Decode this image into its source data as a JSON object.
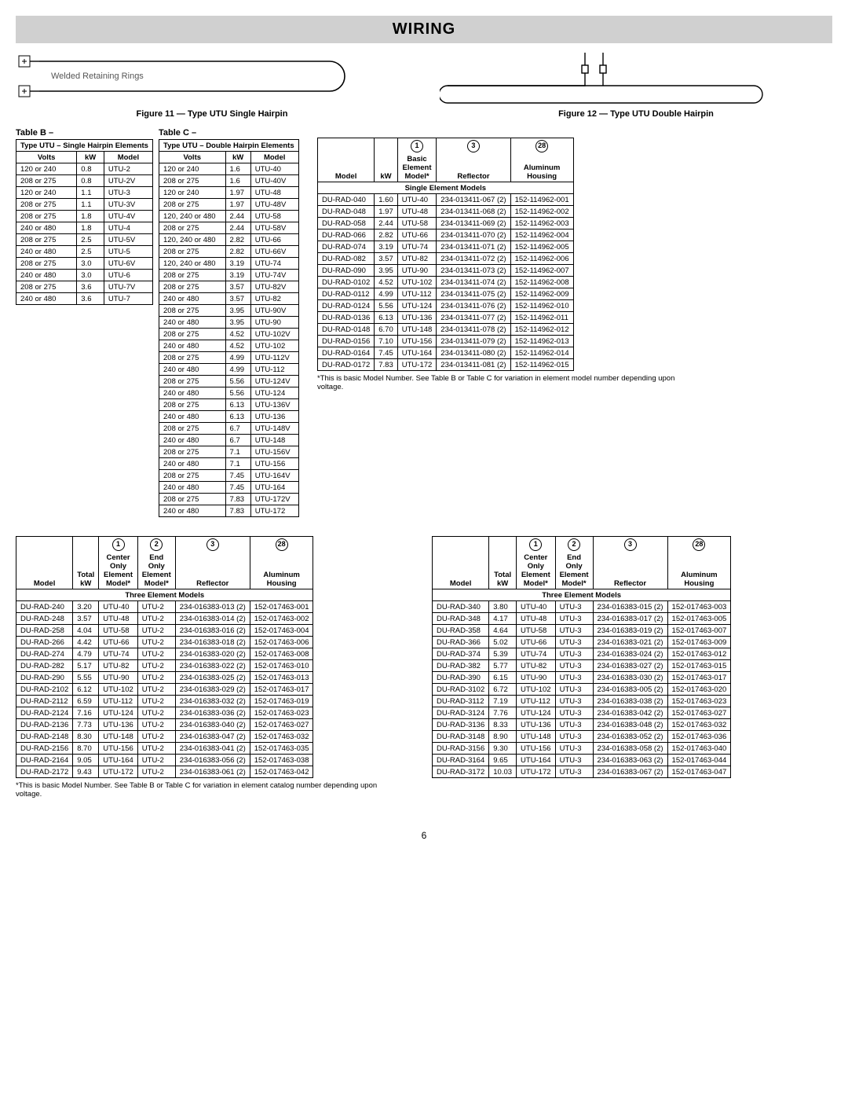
{
  "banner": "WIRING",
  "fig11": "Figure 11 — Type UTU Single Hairpin",
  "fig12": "Figure 12 — Type UTU Double Hairpin",
  "fig11_label": "Welded Retaining Rings",
  "tableB_label": "Table B –",
  "tableC_label": "Table C –",
  "tableB": {
    "title": "Type UTU – Single Hairpin Elements",
    "headers": [
      "Volts",
      "kW",
      "Model"
    ],
    "rows": [
      [
        "120 or 240",
        "0.8",
        "UTU-2"
      ],
      [
        "208 or 275",
        "0.8",
        "UTU-2V"
      ],
      [
        "120 or 240",
        "1.1",
        "UTU-3"
      ],
      [
        "208 or 275",
        "1.1",
        "UTU-3V"
      ],
      [
        "208 or 275",
        "1.8",
        "UTU-4V"
      ],
      [
        "240 or 480",
        "1.8",
        "UTU-4"
      ],
      [
        "208 or 275",
        "2.5",
        "UTU-5V"
      ],
      [
        "240 or 480",
        "2.5",
        "UTU-5"
      ],
      [
        "208 or 275",
        "3.0",
        "UTU-6V"
      ],
      [
        "240 or 480",
        "3.0",
        "UTU-6"
      ],
      [
        "208 or 275",
        "3.6",
        "UTU-7V"
      ],
      [
        "240 or 480",
        "3.6",
        "UTU-7"
      ]
    ]
  },
  "tableC": {
    "title": "Type UTU – Double Hairpin Elements",
    "headers": [
      "Volts",
      "kW",
      "Model"
    ],
    "rows": [
      [
        "120 or 240",
        "1.6",
        "UTU-40"
      ],
      [
        "208 or 275",
        "1.6",
        "UTU-40V"
      ],
      [
        "120 or 240",
        "1.97",
        "UTU-48"
      ],
      [
        "208 or 275",
        "1.97",
        "UTU-48V"
      ],
      [
        "120, 240 or 480",
        "2.44",
        "UTU-58"
      ],
      [
        "208 or 275",
        "2.44",
        "UTU-58V"
      ],
      [
        "120, 240 or 480",
        "2.82",
        "UTU-66"
      ],
      [
        "208 or 275",
        "2.82",
        "UTU-66V"
      ],
      [
        "120, 240 or 480",
        "3.19",
        "UTU-74"
      ],
      [
        "208 or 275",
        "3.19",
        "UTU-74V"
      ],
      [
        "208 or 275",
        "3.57",
        "UTU-82V"
      ],
      [
        "240 or 480",
        "3.57",
        "UTU-82"
      ],
      [
        "208 or 275",
        "3.95",
        "UTU-90V"
      ],
      [
        "240 or 480",
        "3.95",
        "UTU-90"
      ],
      [
        "208 or 275",
        "4.52",
        "UTU-102V"
      ],
      [
        "240 or 480",
        "4.52",
        "UTU-102"
      ],
      [
        "208 or 275",
        "4.99",
        "UTU-112V"
      ],
      [
        "240 or 480",
        "4.99",
        "UTU-112"
      ],
      [
        "208 or 275",
        "5.56",
        "UTU-124V"
      ],
      [
        "240 or 480",
        "5.56",
        "UTU-124"
      ],
      [
        "208 or 275",
        "6.13",
        "UTU-136V"
      ],
      [
        "240 or 480",
        "6.13",
        "UTU-136"
      ],
      [
        "208 or 275",
        "6.7",
        "UTU-148V"
      ],
      [
        "240 or 480",
        "6.7",
        "UTU-148"
      ],
      [
        "208 or 275",
        "7.1",
        "UTU-156V"
      ],
      [
        "240 or 480",
        "7.1",
        "UTU-156"
      ],
      [
        "208 or 275",
        "7.45",
        "UTU-164V"
      ],
      [
        "240 or 480",
        "7.45",
        "UTU-164"
      ],
      [
        "208 or 275",
        "7.83",
        "UTU-172V"
      ],
      [
        "240 or 480",
        "7.83",
        "UTU-172"
      ]
    ]
  },
  "singleElem": {
    "circles": [
      "1",
      "3",
      "28"
    ],
    "headers": [
      "Model",
      "kW",
      "Basic\nElement\nModel*",
      "Reflector",
      "Aluminum\nHousing"
    ],
    "section": "Single Element Models",
    "rows": [
      [
        "DU-RAD-040",
        "1.60",
        "UTU-40",
        "234-013411-067 (2)",
        "152-114962-001"
      ],
      [
        "DU-RAD-048",
        "1.97",
        "UTU-48",
        "234-013411-068 (2)",
        "152-114962-002"
      ],
      [
        "DU-RAD-058",
        "2.44",
        "UTU-58",
        "234-013411-069 (2)",
        "152-114962-003"
      ],
      [
        "DU-RAD-066",
        "2.82",
        "UTU-66",
        "234-013411-070 (2)",
        "152-114962-004"
      ],
      [
        "DU-RAD-074",
        "3.19",
        "UTU-74",
        "234-013411-071 (2)",
        "152-114962-005"
      ],
      [
        "DU-RAD-082",
        "3.57",
        "UTU-82",
        "234-013411-072 (2)",
        "152-114962-006"
      ],
      [
        "DU-RAD-090",
        "3.95",
        "UTU-90",
        "234-013411-073 (2)",
        "152-114962-007"
      ],
      [
        "DU-RAD-0102",
        "4.52",
        "UTU-102",
        "234-013411-074 (2)",
        "152-114962-008"
      ],
      [
        "DU-RAD-0112",
        "4.99",
        "UTU-112",
        "234-013411-075 (2)",
        "152-114962-009"
      ],
      [
        "DU-RAD-0124",
        "5.56",
        "UTU-124",
        "234-013411-076 (2)",
        "152-114962-010"
      ],
      [
        "DU-RAD-0136",
        "6.13",
        "UTU-136",
        "234-013411-077 (2)",
        "152-114962-011"
      ],
      [
        "DU-RAD-0148",
        "6.70",
        "UTU-148",
        "234-013411-078 (2)",
        "152-114962-012"
      ],
      [
        "DU-RAD-0156",
        "7.10",
        "UTU-156",
        "234-013411-079 (2)",
        "152-114962-013"
      ],
      [
        "DU-RAD-0164",
        "7.45",
        "UTU-164",
        "234-013411-080 (2)",
        "152-114962-014"
      ],
      [
        "DU-RAD-0172",
        "7.83",
        "UTU-172",
        "234-013411-081 (2)",
        "152-114962-015"
      ]
    ],
    "footnote": "*This is basic Model Number. See Table B or Table C for variation in element model number depending upon voltage."
  },
  "three2": {
    "circles": [
      "1",
      "2",
      "3",
      "28"
    ],
    "headers": [
      "Model",
      "Total\nkW",
      "Center\nOnly\nElement\nModel*",
      "End\nOnly\nElement\nModel*",
      "Reflector",
      "Aluminum\nHousing"
    ],
    "section": "Three Element Models",
    "rows": [
      [
        "DU-RAD-240",
        "3.20",
        "UTU-40",
        "UTU-2",
        "234-016383-013 (2)",
        "152-017463-001"
      ],
      [
        "DU-RAD-248",
        "3.57",
        "UTU-48",
        "UTU-2",
        "234-016383-014 (2)",
        "152-017463-002"
      ],
      [
        "DU-RAD-258",
        "4.04",
        "UTU-58",
        "UTU-2",
        "234-016383-016 (2)",
        "152-017463-004"
      ],
      [
        "DU-RAD-266",
        "4.42",
        "UTU-66",
        "UTU-2",
        "234-016383-018 (2)",
        "152-017463-006"
      ],
      [
        "DU-RAD-274",
        "4.79",
        "UTU-74",
        "UTU-2",
        "234-016383-020 (2)",
        "152-017463-008"
      ],
      [
        "DU-RAD-282",
        "5.17",
        "UTU-82",
        "UTU-2",
        "234-016383-022 (2)",
        "152-017463-010"
      ],
      [
        "DU-RAD-290",
        "5.55",
        "UTU-90",
        "UTU-2",
        "234-016383-025 (2)",
        "152-017463-013"
      ],
      [
        "DU-RAD-2102",
        "6.12",
        "UTU-102",
        "UTU-2",
        "234-016383-029 (2)",
        "152-017463-017"
      ],
      [
        "DU-RAD-2112",
        "6.59",
        "UTU-112",
        "UTU-2",
        "234-016383-032 (2)",
        "152-017463-019"
      ],
      [
        "DU-RAD-2124",
        "7.16",
        "UTU-124",
        "UTU-2",
        "234-016383-036 (2)",
        "152-017463-023"
      ],
      [
        "DU-RAD-2136",
        "7.73",
        "UTU-136",
        "UTU-2",
        "234-016383-040 (2)",
        "152-017463-027"
      ],
      [
        "DU-RAD-2148",
        "8.30",
        "UTU-148",
        "UTU-2",
        "234-016383-047 (2)",
        "152-017463-032"
      ],
      [
        "DU-RAD-2156",
        "8.70",
        "UTU-156",
        "UTU-2",
        "234-016383-041 (2)",
        "152-017463-035"
      ],
      [
        "DU-RAD-2164",
        "9.05",
        "UTU-164",
        "UTU-2",
        "234-016383-056 (2)",
        "152-017463-038"
      ],
      [
        "DU-RAD-2172",
        "9.43",
        "UTU-172",
        "UTU-2",
        "234-016383-061 (2)",
        "152-017463-042"
      ]
    ],
    "footnote": "*This is basic Model Number. See Table B or Table C for variation in element catalog number depending upon voltage."
  },
  "three3": {
    "circles": [
      "1",
      "2",
      "3",
      "28"
    ],
    "headers": [
      "Model",
      "Total\nkW",
      "Center\nOnly\nElement\nModel*",
      "End\nOnly\nElement\nModel*",
      "Reflector",
      "Aluminum\nHousing"
    ],
    "section": "Three Element Models",
    "rows": [
      [
        "DU-RAD-340",
        "3.80",
        "UTU-40",
        "UTU-3",
        "234-016383-015 (2)",
        "152-017463-003"
      ],
      [
        "DU-RAD-348",
        "4.17",
        "UTU-48",
        "UTU-3",
        "234-016383-017 (2)",
        "152-017463-005"
      ],
      [
        "DU-RAD-358",
        "4.64",
        "UTU-58",
        "UTU-3",
        "234-016383-019 (2)",
        "152-017463-007"
      ],
      [
        "DU-RAD-366",
        "5.02",
        "UTU-66",
        "UTU-3",
        "234-016383-021 (2)",
        "152-017463-009"
      ],
      [
        "DU-RAD-374",
        "5.39",
        "UTU-74",
        "UTU-3",
        "234-016383-024 (2)",
        "152-017463-012"
      ],
      [
        "DU-RAD-382",
        "5.77",
        "UTU-82",
        "UTU-3",
        "234-016383-027 (2)",
        "152-017463-015"
      ],
      [
        "DU-RAD-390",
        "6.15",
        "UTU-90",
        "UTU-3",
        "234-016383-030 (2)",
        "152-017463-017"
      ],
      [
        "DU-RAD-3102",
        "6.72",
        "UTU-102",
        "UTU-3",
        "234-016383-005 (2)",
        "152-017463-020"
      ],
      [
        "DU-RAD-3112",
        "7.19",
        "UTU-112",
        "UTU-3",
        "234-016383-038 (2)",
        "152-017463-023"
      ],
      [
        "DU-RAD-3124",
        "7.76",
        "UTU-124",
        "UTU-3",
        "234-016383-042 (2)",
        "152-017463-027"
      ],
      [
        "DU-RAD-3136",
        "8.33",
        "UTU-136",
        "UTU-3",
        "234-016383-048 (2)",
        "152-017463-032"
      ],
      [
        "DU-RAD-3148",
        "8.90",
        "UTU-148",
        "UTU-3",
        "234-016383-052 (2)",
        "152-017463-036"
      ],
      [
        "DU-RAD-3156",
        "9.30",
        "UTU-156",
        "UTU-3",
        "234-016383-058 (2)",
        "152-017463-040"
      ],
      [
        "DU-RAD-3164",
        "9.65",
        "UTU-164",
        "UTU-3",
        "234-016383-063 (2)",
        "152-017463-044"
      ],
      [
        "DU-RAD-3172",
        "10.03",
        "UTU-172",
        "UTU-3",
        "234-016383-067 (2)",
        "152-017463-047"
      ]
    ]
  },
  "pagenum": "6"
}
